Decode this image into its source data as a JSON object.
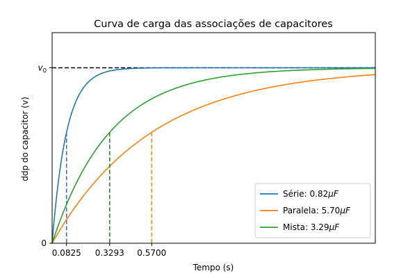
{
  "chart_data": {
    "type": "line",
    "title": "Curva de carga das associações de capacitores",
    "xlabel": "Tempo (s)",
    "ylabel": "ddp do capacitor (v)",
    "xlim": [
      0,
      1.85
    ],
    "ylim": [
      0,
      1.2
    ],
    "x_ticks": [
      {
        "value": 0.0825,
        "label": "0.0825"
      },
      {
        "value": 0.3293,
        "label": "0.3293"
      },
      {
        "value": 0.57,
        "label": "0.5700"
      }
    ],
    "y_ticks": [
      {
        "value": 0,
        "label": "0",
        "sub": ""
      },
      {
        "value": 1,
        "label": "v",
        "sub": "0"
      }
    ],
    "reference_line": {
      "y": 1,
      "style": "dashed",
      "color": "#000000"
    },
    "series": [
      {
        "name_prefix": "Série: 0.82",
        "name_unit": "μF",
        "tau": 0.0825,
        "color": "#1f77b4",
        "marker_color": "#4169e1"
      },
      {
        "name_prefix": "Paralela: 5.70",
        "name_unit": "μF",
        "tau": 0.57,
        "color": "#ff7f0e",
        "marker_color": "#ff8c00"
      },
      {
        "name_prefix": "Mista: 3.29",
        "name_unit": "μF",
        "tau": 0.3293,
        "color": "#2ca02c",
        "marker_color": "#228b22"
      }
    ],
    "grid": false,
    "legend_position": "lower-right"
  }
}
